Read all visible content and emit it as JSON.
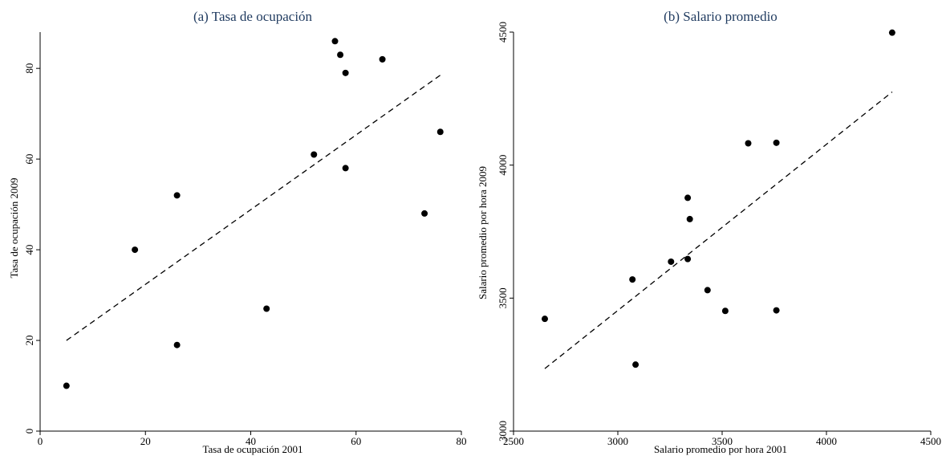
{
  "chart_data": [
    {
      "type": "scatter",
      "title": "(a) Tasa de ocupación",
      "xlabel": "Tasa de ocupación 2001",
      "ylabel": "Tasa de ocupación 2009",
      "xlim": [
        0,
        80
      ],
      "ylim": [
        0,
        88
      ],
      "xticks": [
        0,
        20,
        40,
        60,
        80
      ],
      "yticks": [
        0,
        20,
        40,
        60,
        80
      ],
      "grid": false,
      "points": [
        {
          "x": 5,
          "y": 10
        },
        {
          "x": 18,
          "y": 40
        },
        {
          "x": 26,
          "y": 52
        },
        {
          "x": 26,
          "y": 19
        },
        {
          "x": 43,
          "y": 27
        },
        {
          "x": 52,
          "y": 61
        },
        {
          "x": 56,
          "y": 86
        },
        {
          "x": 57,
          "y": 83
        },
        {
          "x": 58,
          "y": 79
        },
        {
          "x": 58,
          "y": 58
        },
        {
          "x": 65,
          "y": 82
        },
        {
          "x": 73,
          "y": 48
        },
        {
          "x": 76,
          "y": 66
        }
      ],
      "fit_line": {
        "style": "dashed",
        "from": {
          "x": 5,
          "y": 20
        },
        "to": {
          "x": 76,
          "y": 78.5
        }
      }
    },
    {
      "type": "scatter",
      "title": "(b) Salario promedio",
      "xlabel": "Salario promedio por hora 2001",
      "ylabel": "Salario promedio por hora 2009",
      "xlim": [
        2500,
        4500
      ],
      "ylim": [
        3000,
        4500
      ],
      "xticks": [
        2500,
        3000,
        3500,
        4000,
        4500
      ],
      "yticks": [
        3000,
        3500,
        4000,
        4500
      ],
      "grid": false,
      "points": [
        {
          "x": 2650,
          "y": 3422
        },
        {
          "x": 3070,
          "y": 3570
        },
        {
          "x": 3085,
          "y": 3250
        },
        {
          "x": 3255,
          "y": 3637
        },
        {
          "x": 3335,
          "y": 3877
        },
        {
          "x": 3335,
          "y": 3647
        },
        {
          "x": 3345,
          "y": 3797
        },
        {
          "x": 3430,
          "y": 3530
        },
        {
          "x": 3515,
          "y": 3452
        },
        {
          "x": 3625,
          "y": 4082
        },
        {
          "x": 3760,
          "y": 4084
        },
        {
          "x": 3760,
          "y": 3454
        },
        {
          "x": 4315,
          "y": 4498
        }
      ],
      "fit_line": {
        "style": "dashed",
        "from": {
          "x": 2650,
          "y": 3235
        },
        "to": {
          "x": 4315,
          "y": 4275
        }
      }
    }
  ]
}
